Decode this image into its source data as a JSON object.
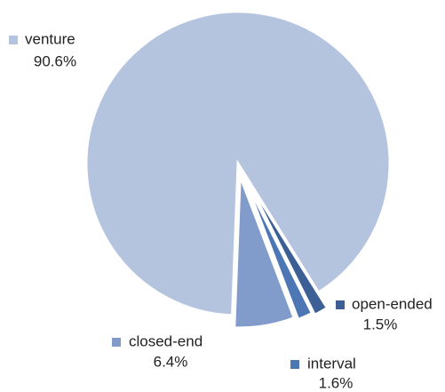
{
  "chart_data": {
    "type": "pie",
    "categories": [
      "open-ended",
      "interval",
      "closed-end",
      "venture"
    ],
    "values": [
      1.5,
      1.6,
      6.4,
      90.6
    ],
    "value_labels": [
      "1.5%",
      "1.6%",
      "6.4%",
      "90.6%"
    ],
    "colors": [
      "#3c5f96",
      "#4d76b5",
      "#819bca",
      "#b4c3de"
    ]
  }
}
